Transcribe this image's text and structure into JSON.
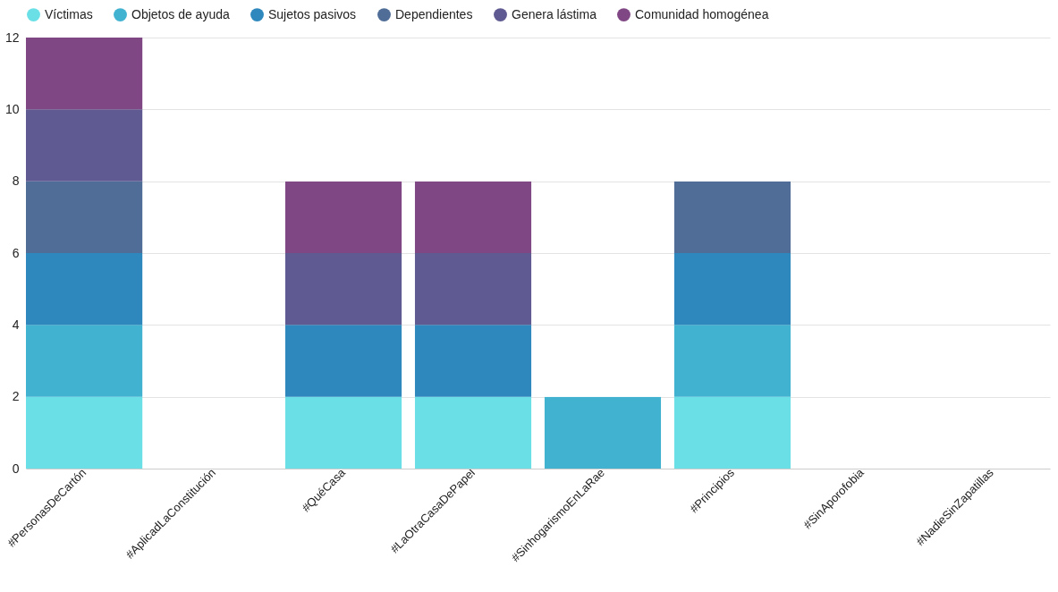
{
  "chart_data": {
    "type": "bar",
    "stacked": true,
    "categories": [
      "#PersonasDeCartón",
      "#AplicadLaConstitución",
      "#QuéCasa",
      "#LaOtraCasaDePapel",
      "#SinhogarismoEnLaRae",
      "#Principios",
      "#SinAporofobia",
      "#NadieSinZapatillas"
    ],
    "series": [
      {
        "name": "Víctimas",
        "color": "#6ae0e6",
        "values": [
          2,
          0,
          2,
          2,
          0,
          2,
          0,
          0
        ]
      },
      {
        "name": "Objetos de ayuda",
        "color": "#42b2d1",
        "values": [
          2,
          0,
          0,
          0,
          2,
          2,
          0,
          0
        ]
      },
      {
        "name": "Sujetos pasivos",
        "color": "#2e88bd",
        "values": [
          2,
          0,
          2,
          2,
          0,
          2,
          0,
          0
        ]
      },
      {
        "name": "Dependientes",
        "color": "#4f6d96",
        "values": [
          2,
          0,
          0,
          0,
          0,
          2,
          0,
          0
        ]
      },
      {
        "name": "Genera lástima",
        "color": "#5f5a91",
        "values": [
          2,
          0,
          2,
          2,
          0,
          0,
          0,
          0
        ]
      },
      {
        "name": "Comunidad homogénea",
        "color": "#7f4783",
        "values": [
          2,
          0,
          2,
          2,
          0,
          0,
          0,
          0
        ]
      }
    ],
    "ylim": [
      0,
      12
    ],
    "yticks": [
      0,
      2,
      4,
      6,
      8,
      10,
      12
    ],
    "grid": "y",
    "legend": "top"
  }
}
